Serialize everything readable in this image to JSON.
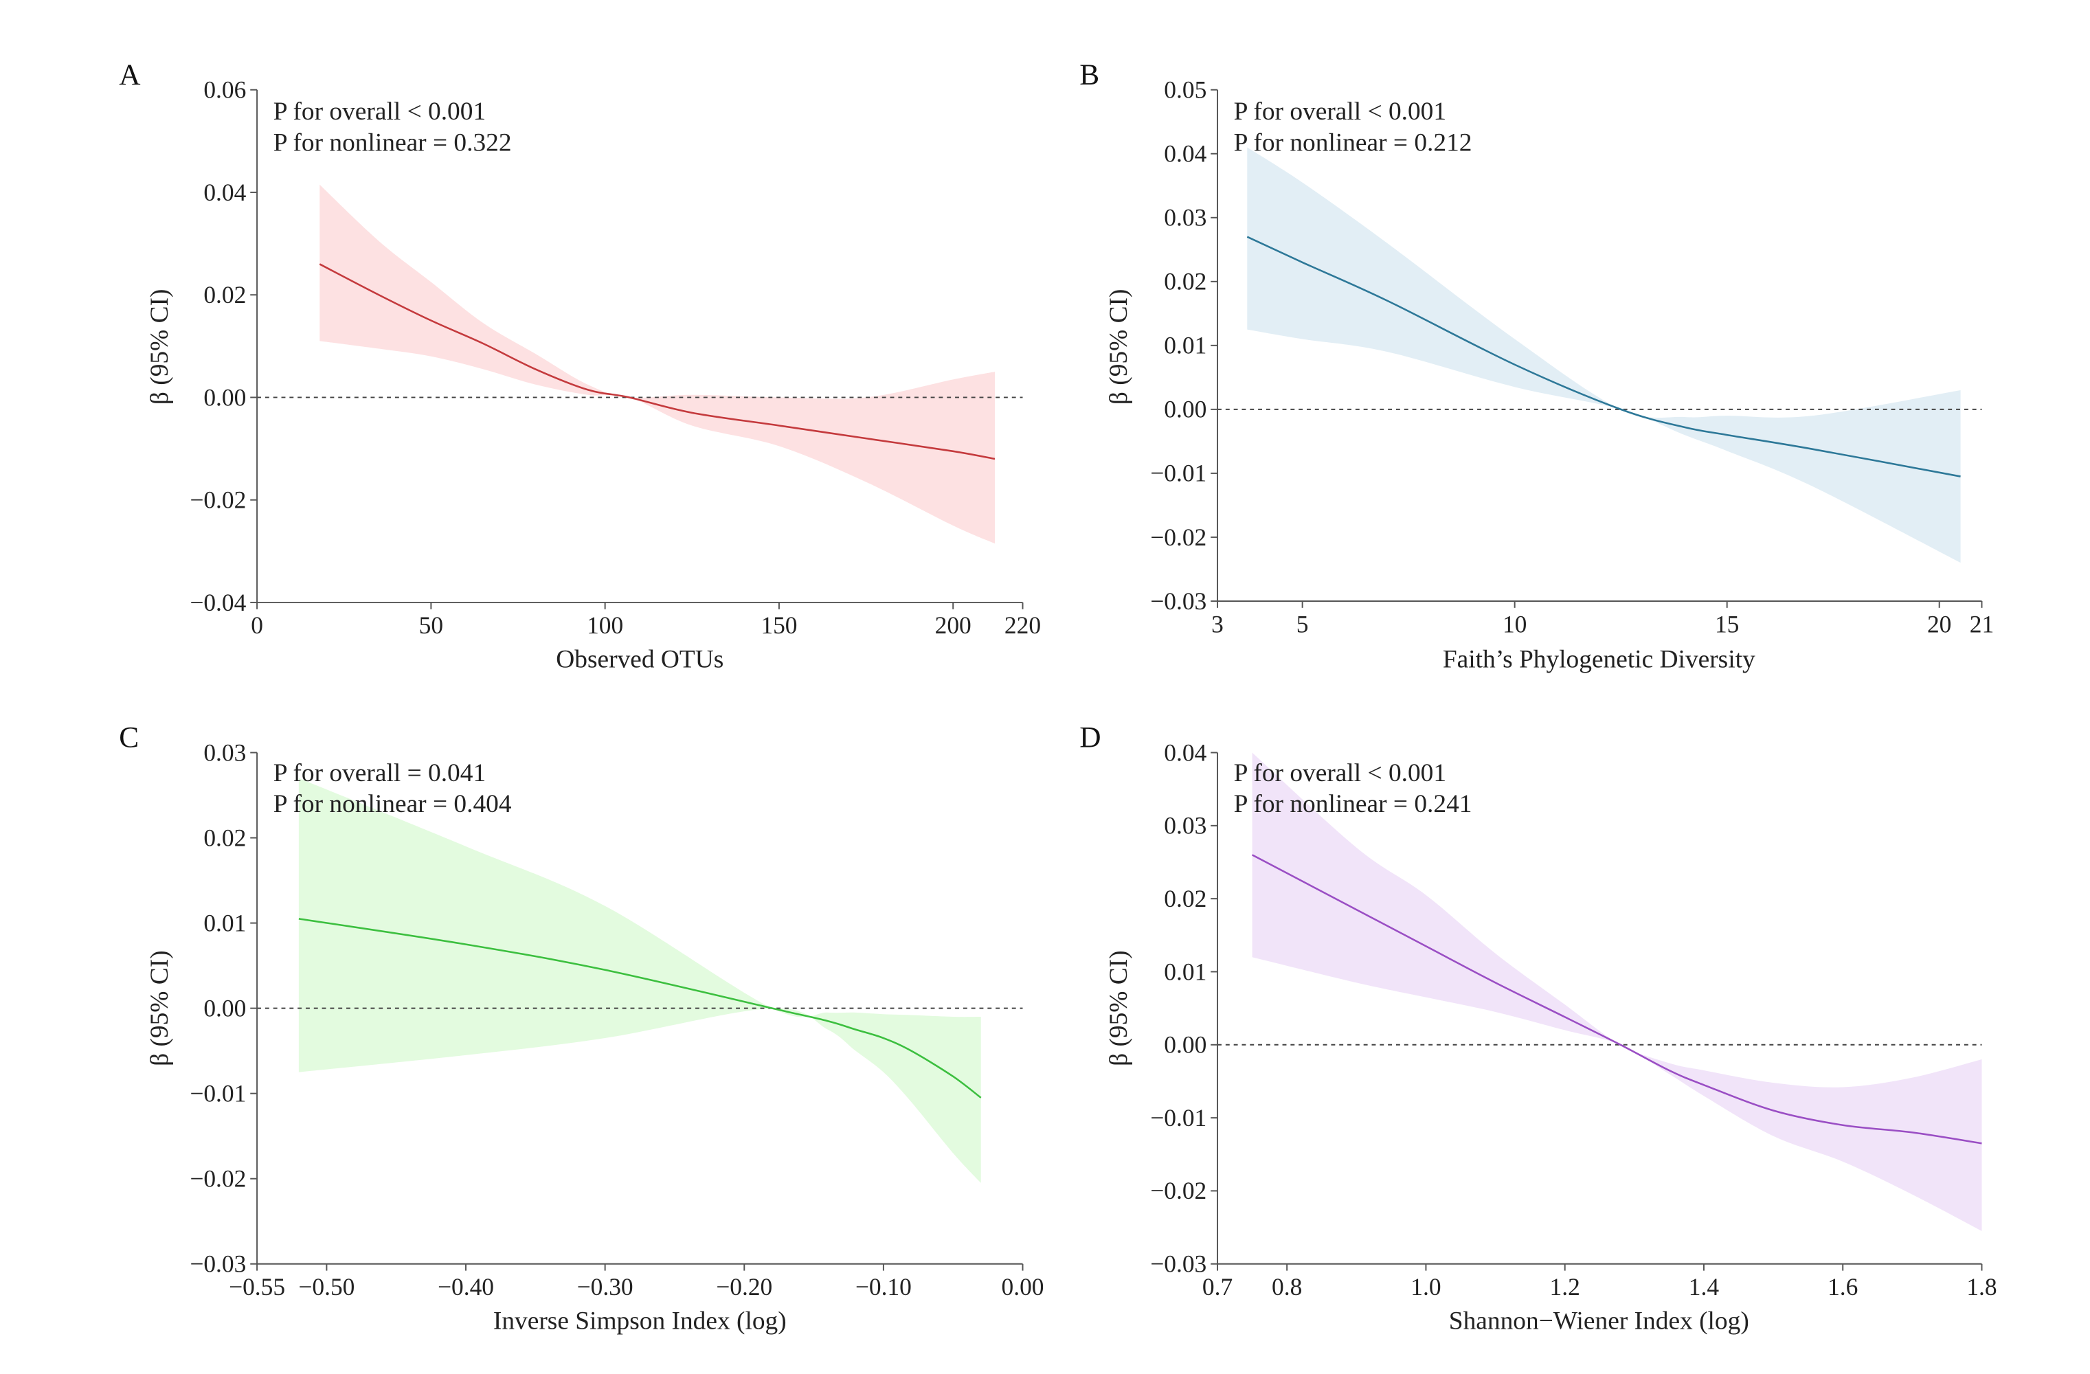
{
  "chart_data": [
    {
      "panel": "A",
      "type": "line",
      "xlabel": "Observed OTUs",
      "ylabel": "β (95% CI)",
      "xlim": [
        0,
        220
      ],
      "ylim": [
        -0.04,
        0.06
      ],
      "xticks": [
        0,
        50,
        100,
        150,
        200,
        220
      ],
      "xtick_labels": [
        "0",
        "50",
        "100",
        "150",
        "200",
        "220"
      ],
      "yticks": [
        -0.04,
        -0.02,
        0.0,
        0.02,
        0.04,
        0.06
      ],
      "ytick_labels": [
        "−0.04",
        "−0.02",
        "0.00",
        "0.02",
        "0.04",
        "0.06"
      ],
      "annotations": [
        "P for overall < 0.001",
        "P for nonlinear = 0.322"
      ],
      "reference_line": 0,
      "line_color": "#c43a3d",
      "band_color": "#fde1e2",
      "x": [
        18,
        35,
        50,
        65,
        80,
        95,
        107,
        125,
        150,
        175,
        200,
        212
      ],
      "y": [
        0.026,
        0.02,
        0.015,
        0.0105,
        0.0055,
        0.0015,
        0.0,
        -0.003,
        -0.0055,
        -0.008,
        -0.0105,
        -0.012
      ],
      "lower": [
        0.011,
        0.0095,
        0.008,
        0.0055,
        0.0025,
        0.0005,
        0.0,
        -0.0055,
        -0.0095,
        -0.0165,
        -0.025,
        -0.0285
      ],
      "upper": [
        0.0415,
        0.0305,
        0.0225,
        0.0145,
        0.0085,
        0.0025,
        0.0,
        0.0005,
        0.0,
        0.0,
        0.0035,
        0.005
      ]
    },
    {
      "panel": "B",
      "type": "line",
      "xlabel": "Faith’s Phylogenetic Diversity",
      "ylabel": "β (95% CI)",
      "xlim": [
        3,
        21
      ],
      "ylim": [
        -0.03,
        0.05
      ],
      "xticks": [
        3,
        5,
        10,
        15,
        20,
        21
      ],
      "xtick_labels": [
        "3",
        "5",
        "10",
        "15",
        "20",
        "21"
      ],
      "yticks": [
        -0.03,
        -0.02,
        -0.01,
        0.0,
        0.01,
        0.02,
        0.03,
        0.04,
        0.05
      ],
      "ytick_labels": [
        "−0.03",
        "−0.02",
        "−0.01",
        "0.00",
        "0.01",
        "0.02",
        "0.03",
        "0.04",
        "0.05"
      ],
      "annotations": [
        "P for overall < 0.001",
        "P for nonlinear = 0.212"
      ],
      "reference_line": 0,
      "line_color": "#2d7898",
      "band_color": "#e2eef5",
      "x": [
        3.7,
        5,
        7,
        10,
        12.5,
        14,
        15,
        17,
        20.5
      ],
      "y": [
        0.027,
        0.023,
        0.017,
        0.007,
        0.0,
        -0.0028,
        -0.004,
        -0.0062,
        -0.0105
      ],
      "lower": [
        0.0125,
        0.011,
        0.009,
        0.0035,
        0.0,
        -0.004,
        -0.0065,
        -0.012,
        -0.024
      ],
      "upper": [
        0.041,
        0.0355,
        0.026,
        0.011,
        0.0,
        -0.0012,
        -0.001,
        -0.001,
        0.003
      ]
    },
    {
      "panel": "C",
      "type": "line",
      "xlabel": "Inverse Simpson Index (log)",
      "ylabel": "β (95% CI)",
      "xlim": [
        -0.55,
        0.0
      ],
      "ylim": [
        -0.03,
        0.03
      ],
      "xticks": [
        -0.55,
        -0.5,
        -0.4,
        -0.3,
        -0.2,
        -0.1,
        0.0
      ],
      "xtick_labels": [
        "−0.55",
        "−0.50",
        "−0.40",
        "−0.30",
        "−0.20",
        "−0.10",
        "0.00"
      ],
      "yticks": [
        -0.03,
        -0.02,
        -0.01,
        0.0,
        0.01,
        0.02,
        0.03
      ],
      "ytick_labels": [
        "−0.03",
        "−0.02",
        "−0.01",
        "0.00",
        "0.01",
        "0.02",
        "0.03"
      ],
      "annotations": [
        "P for overall = 0.041",
        "P for nonlinear = 0.404"
      ],
      "reference_line": 0,
      "line_color": "#3cbf3f",
      "band_color": "#e3fbdf",
      "x": [
        -0.52,
        -0.4,
        -0.3,
        -0.18,
        -0.14,
        -0.12,
        -0.1,
        -0.08,
        -0.05,
        -0.03
      ],
      "y": [
        0.0105,
        0.0075,
        0.0045,
        0.0,
        -0.0015,
        -0.0025,
        -0.0035,
        -0.005,
        -0.008,
        -0.0105
      ],
      "lower": [
        -0.0075,
        -0.0055,
        -0.0035,
        0.0,
        -0.0025,
        -0.005,
        -0.0075,
        -0.011,
        -0.017,
        -0.0205
      ],
      "upper": [
        0.027,
        0.019,
        0.012,
        0.0,
        -0.0005,
        -0.0005,
        -0.0007,
        -0.0008,
        -0.001,
        -0.001
      ]
    },
    {
      "panel": "D",
      "type": "line",
      "xlabel": "Shannon−Wiener Index (log)",
      "ylabel": "β (95% CI)",
      "xlim": [
        0.7,
        1.8
      ],
      "ylim": [
        -0.03,
        0.04
      ],
      "xticks": [
        0.7,
        0.8,
        1.0,
        1.2,
        1.4,
        1.6,
        1.8
      ],
      "xtick_labels": [
        "0.7",
        "0.8",
        "1.0",
        "1.2",
        "1.4",
        "1.6",
        "1.8"
      ],
      "yticks": [
        -0.03,
        -0.02,
        -0.01,
        0.0,
        0.01,
        0.02,
        0.03,
        0.04
      ],
      "ytick_labels": [
        "−0.03",
        "−0.02",
        "−0.01",
        "0.00",
        "0.01",
        "0.02",
        "0.03",
        "0.04"
      ],
      "annotations": [
        "P for overall < 0.001",
        "P for nonlinear = 0.241"
      ],
      "reference_line": 0,
      "line_color": "#9a4ec4",
      "band_color": "#f1e4f9",
      "x": [
        0.75,
        0.9,
        1.0,
        1.1,
        1.2,
        1.28,
        1.35,
        1.4,
        1.5,
        1.6,
        1.7,
        1.8
      ],
      "y": [
        0.026,
        0.0185,
        0.0135,
        0.0085,
        0.0038,
        0.0,
        -0.0035,
        -0.0055,
        -0.009,
        -0.011,
        -0.012,
        -0.0135
      ],
      "lower": [
        0.012,
        0.0085,
        0.0065,
        0.0045,
        0.002,
        0.0,
        -0.004,
        -0.007,
        -0.0125,
        -0.016,
        -0.0205,
        -0.0255
      ],
      "upper": [
        0.04,
        0.027,
        0.0205,
        0.0125,
        0.0055,
        0.0,
        -0.0025,
        -0.0035,
        -0.0052,
        -0.0058,
        -0.0045,
        -0.002
      ]
    }
  ]
}
